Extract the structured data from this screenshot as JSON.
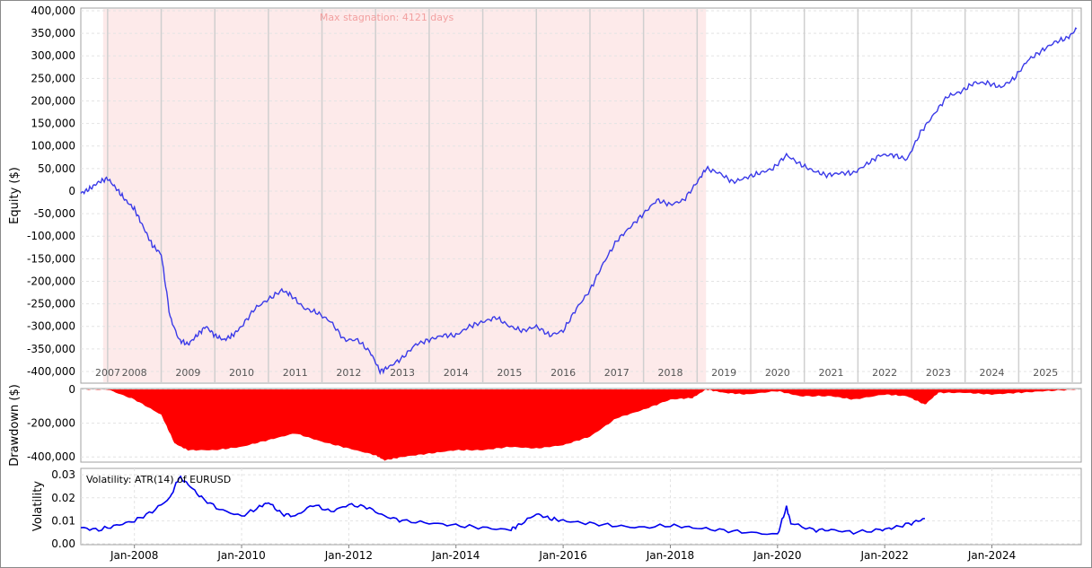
{
  "chart_data": [
    {
      "type": "line",
      "ylabel": "Equity ($)",
      "ylim": [
        -420000,
        400000
      ],
      "yticks": [
        400000,
        350000,
        300000,
        250000,
        200000,
        150000,
        100000,
        50000,
        0,
        -50000,
        -100000,
        -150000,
        -200000,
        -250000,
        -300000,
        -350000,
        -400000
      ],
      "ytick_labels": [
        "400,000",
        "350,000",
        "300,000",
        "250,000",
        "200,000",
        "150,000",
        "100,000",
        "50,000",
        "0",
        "-50,000",
        "-100,000",
        "-150,000",
        "-200,000",
        "-250,000",
        "-300,000",
        "-350,000",
        "-400,000"
      ],
      "year_labels": [
        "2007",
        "2008",
        "2009",
        "2010",
        "2011",
        "2012",
        "2013",
        "2014",
        "2015",
        "2016",
        "2017",
        "2018",
        "2019",
        "2020",
        "2021",
        "2022",
        "2023",
        "2024",
        "2025"
      ],
      "stagnation_text": "Max stagnation: 4121 days",
      "stagnation_range": [
        "2007-06",
        "2018-09"
      ],
      "series_color": "#3a3ae8",
      "highlight_color": "#fdeaea",
      "series": [
        {
          "x": [
            "2007-01",
            "2007-03",
            "2007-05",
            "2007-07",
            "2007-09",
            "2007-11",
            "2008-01",
            "2008-03",
            "2008-05",
            "2008-07",
            "2008-09",
            "2008-11",
            "2009-01",
            "2009-03",
            "2009-05",
            "2009-07",
            "2009-09",
            "2009-11",
            "2010-01",
            "2010-04",
            "2010-07",
            "2010-10",
            "2010-12",
            "2011-03",
            "2011-06",
            "2011-09",
            "2011-12",
            "2012-03",
            "2012-06",
            "2012-08",
            "2012-10",
            "2013-01",
            "2013-04",
            "2013-07",
            "2013-10",
            "2014-01",
            "2014-04",
            "2014-07",
            "2014-10",
            "2015-01",
            "2015-04",
            "2015-07",
            "2015-10",
            "2016-01",
            "2016-04",
            "2016-07",
            "2016-10",
            "2017-01",
            "2017-04",
            "2017-07",
            "2017-10",
            "2018-01",
            "2018-04",
            "2018-07",
            "2018-09",
            "2018-12",
            "2019-03",
            "2019-06",
            "2019-09",
            "2019-12",
            "2020-03",
            "2020-06",
            "2020-09",
            "2020-12",
            "2021-03",
            "2021-06",
            "2021-09",
            "2021-12",
            "2022-03",
            "2022-06",
            "2022-09",
            "2022-12",
            "2023-03",
            "2023-06",
            "2023-09",
            "2023-12",
            "2024-03",
            "2024-06",
            "2024-09",
            "2024-12",
            "2025-03",
            "2025-06",
            "2025-08"
          ],
          "values": [
            -5000,
            5000,
            20000,
            28000,
            5000,
            -20000,
            -40000,
            -80000,
            -120000,
            -140000,
            -280000,
            -330000,
            -340000,
            -320000,
            -300000,
            -320000,
            -330000,
            -320000,
            -300000,
            -260000,
            -240000,
            -220000,
            -230000,
            -260000,
            -270000,
            -290000,
            -330000,
            -330000,
            -360000,
            -400000,
            -390000,
            -370000,
            -340000,
            -330000,
            -320000,
            -320000,
            -300000,
            -290000,
            -280000,
            -300000,
            -310000,
            -300000,
            -320000,
            -310000,
            -260000,
            -220000,
            -160000,
            -110000,
            -80000,
            -50000,
            -20000,
            -30000,
            -20000,
            20000,
            50000,
            40000,
            20000,
            30000,
            40000,
            50000,
            80000,
            60000,
            45000,
            35000,
            40000,
            40000,
            60000,
            80000,
            80000,
            70000,
            130000,
            170000,
            210000,
            220000,
            240000,
            240000,
            230000,
            250000,
            290000,
            310000,
            330000,
            340000,
            360000
          ]
        }
      ]
    },
    {
      "type": "bar",
      "ylabel": "Drawdown ($)",
      "ylim": [
        -420000,
        0
      ],
      "yticks": [
        0,
        -200000,
        -400000
      ],
      "ytick_labels": [
        "0",
        "-200,000",
        "-400,000"
      ],
      "series_color": "#ff0000",
      "series": [
        {
          "x": [
            "2007-01",
            "2007-07",
            "2008-01",
            "2008-07",
            "2008-10",
            "2009-01",
            "2009-07",
            "2010-01",
            "2010-07",
            "2011-01",
            "2011-07",
            "2012-01",
            "2012-07",
            "2012-09",
            "2013-01",
            "2013-07",
            "2014-01",
            "2014-07",
            "2015-01",
            "2015-07",
            "2016-01",
            "2016-07",
            "2017-01",
            "2017-07",
            "2018-01",
            "2018-06",
            "2018-09",
            "2019-01",
            "2019-06",
            "2020-01",
            "2020-06",
            "2021-01",
            "2021-06",
            "2022-01",
            "2022-06",
            "2022-10",
            "2023-01",
            "2023-07",
            "2024-01",
            "2024-07",
            "2025-01",
            "2025-08"
          ],
          "values": [
            0,
            0,
            -60000,
            -150000,
            -320000,
            -360000,
            -360000,
            -340000,
            -300000,
            -260000,
            -310000,
            -350000,
            -390000,
            -420000,
            -400000,
            -380000,
            -360000,
            -360000,
            -340000,
            -350000,
            -330000,
            -280000,
            -170000,
            -120000,
            -60000,
            -50000,
            0,
            -20000,
            -30000,
            -10000,
            -40000,
            -40000,
            -60000,
            -30000,
            -40000,
            -90000,
            -20000,
            -20000,
            -30000,
            -20000,
            -10000,
            0
          ]
        }
      ]
    },
    {
      "type": "line",
      "ylabel": "Volatility",
      "legend": "Volatility: ATR(14) of EURUSD",
      "ylim": [
        0,
        0.032
      ],
      "yticks": [
        0.03,
        0.02,
        0.01,
        0.0
      ],
      "ytick_labels": [
        "0.03",
        "0.02",
        "0.01",
        "0.00"
      ],
      "xtick_labels": [
        "Jan-2008",
        "Jan-2010",
        "Jan-2012",
        "Jan-2014",
        "Jan-2016",
        "Jan-2018",
        "Jan-2020",
        "Jan-2022",
        "Jan-2024"
      ],
      "series_color": "#0000ee",
      "series": [
        {
          "x": [
            "2007-01",
            "2007-05",
            "2007-09",
            "2008-01",
            "2008-05",
            "2008-09",
            "2008-11",
            "2009-01",
            "2009-04",
            "2009-08",
            "2010-01",
            "2010-05",
            "2010-07",
            "2010-10",
            "2011-01",
            "2011-05",
            "2011-09",
            "2012-01",
            "2012-05",
            "2012-09",
            "2013-01",
            "2013-07",
            "2014-01",
            "2014-07",
            "2015-01",
            "2015-03",
            "2015-07",
            "2015-10",
            "2016-01",
            "2016-06",
            "2016-12",
            "2017-06",
            "2018-01",
            "2018-06",
            "2018-12",
            "2019-06",
            "2020-01",
            "2020-03",
            "2020-04",
            "2020-09",
            "2021-01",
            "2021-06",
            "2021-12",
            "2022-03",
            "2022-07",
            "2022-10"
          ],
          "values": [
            0.007,
            0.006,
            0.008,
            0.01,
            0.014,
            0.02,
            0.029,
            0.026,
            0.02,
            0.015,
            0.012,
            0.016,
            0.018,
            0.013,
            0.012,
            0.017,
            0.014,
            0.017,
            0.016,
            0.012,
            0.01,
            0.009,
            0.008,
            0.007,
            0.006,
            0.008,
            0.013,
            0.011,
            0.01,
            0.009,
            0.008,
            0.007,
            0.008,
            0.007,
            0.006,
            0.005,
            0.004,
            0.016,
            0.009,
            0.006,
            0.006,
            0.005,
            0.006,
            0.007,
            0.009,
            0.011
          ]
        }
      ]
    }
  ]
}
